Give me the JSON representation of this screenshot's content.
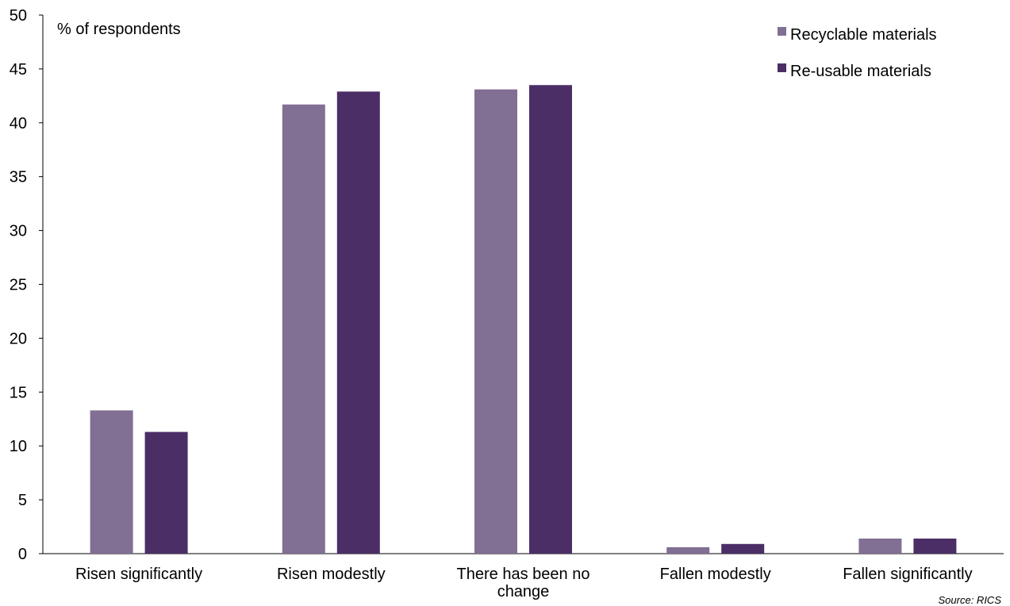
{
  "chart_data": {
    "type": "bar",
    "ylabel": "% of respondents",
    "ylim": [
      0,
      50
    ],
    "yticks": [
      0,
      5,
      10,
      15,
      20,
      25,
      30,
      35,
      40,
      45,
      50
    ],
    "categories": [
      [
        "Risen significantly"
      ],
      [
        "Risen modestly"
      ],
      [
        "There has been no",
        "change"
      ],
      [
        "Fallen modestly"
      ],
      [
        "Fallen significantly"
      ]
    ],
    "series": [
      {
        "name": "Recyclable materials",
        "color": "#826f94",
        "values": [
          13.3,
          41.7,
          43.1,
          0.6,
          1.4
        ]
      },
      {
        "name": "Re-usable materials",
        "color": "#4b2e66",
        "values": [
          11.3,
          42.9,
          43.5,
          0.9,
          1.4
        ]
      }
    ],
    "legend_position": "top-right",
    "grid": false,
    "source": "Source: RICS"
  }
}
